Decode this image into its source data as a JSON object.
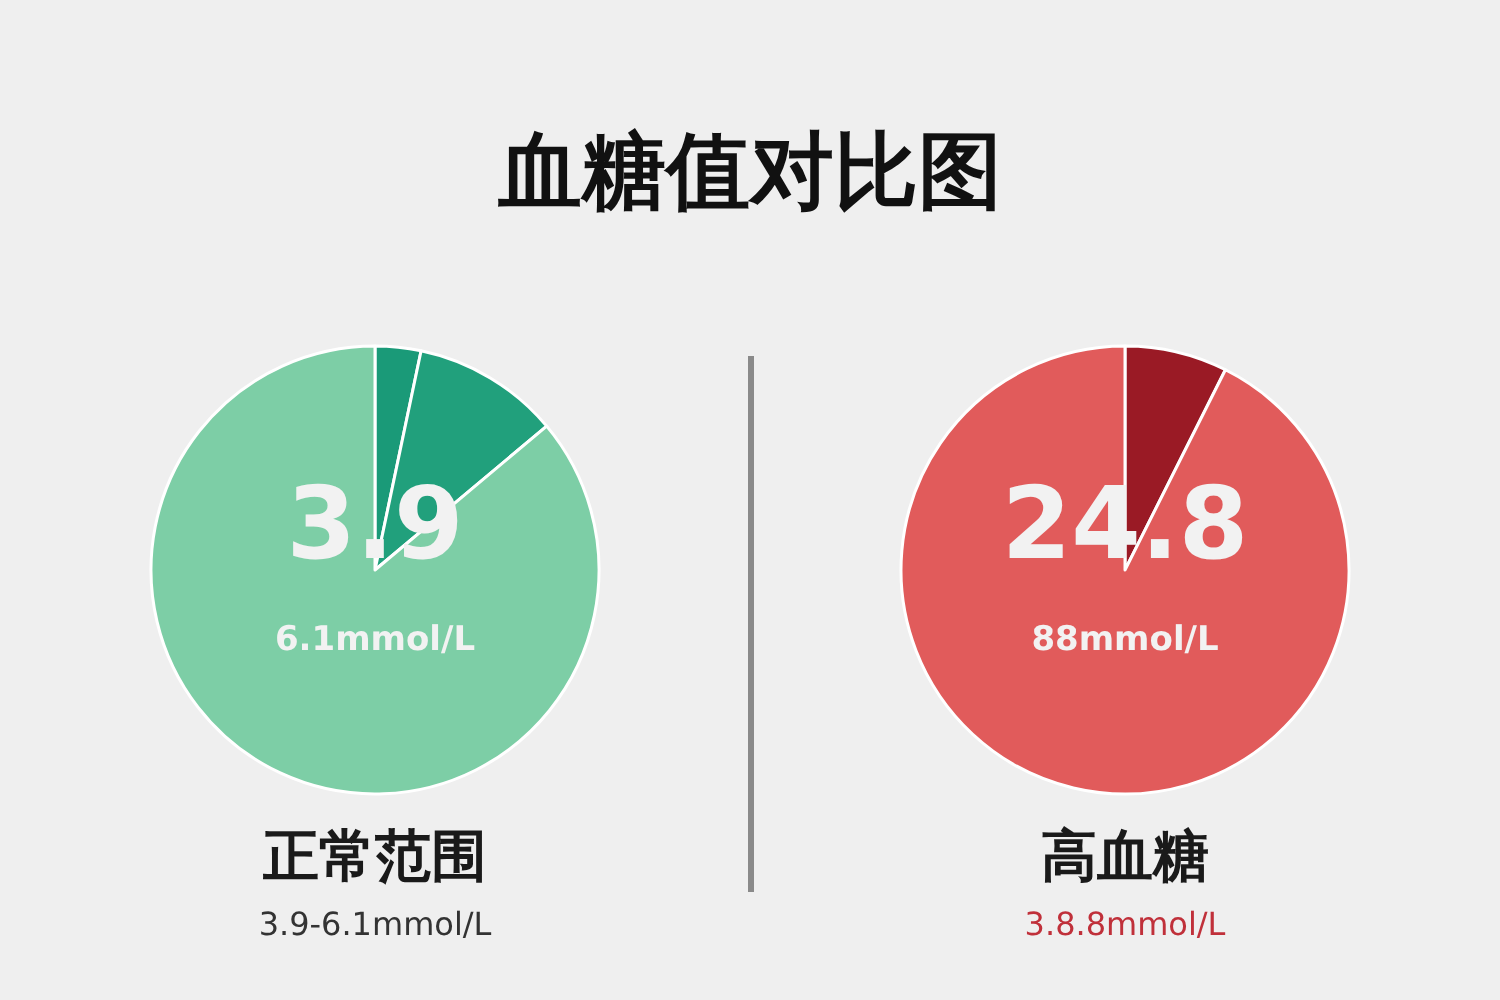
{
  "chart_data": [
    {
      "type": "pie",
      "title": "血糖值对比图",
      "categories": [
        null,
        null,
        null
      ],
      "values": [
        3.3,
        10.6,
        86.1
      ],
      "colors": [
        "#1a9a78",
        "#21a07c",
        "#7dcea6"
      ],
      "annotations": [
        "3.9",
        "6.1mmol/L",
        "正常范围",
        "3.9-6.1mmol/L"
      ]
    },
    {
      "type": "pie",
      "categories": [
        null,
        null
      ],
      "values": [
        7.4,
        92.6
      ],
      "colors": [
        "#9a1a25",
        "#e15b5b"
      ],
      "annotations": [
        "24.8",
        "88mmol/L",
        "高血糖",
        "3.8.8mmol/L"
      ]
    }
  ]
}
